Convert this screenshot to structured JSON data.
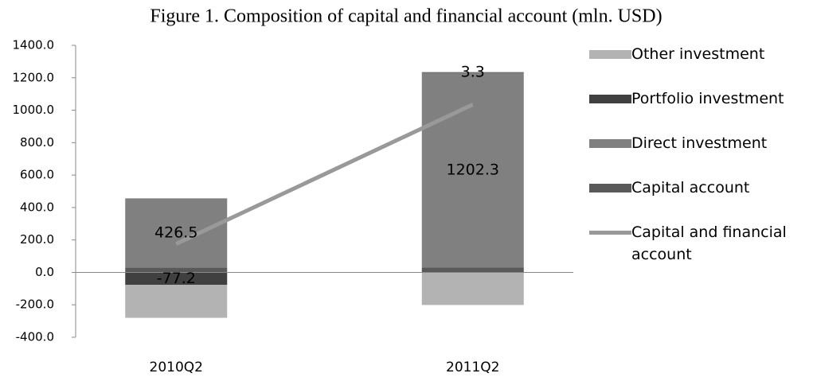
{
  "chart_data": {
    "type": "bar",
    "stacked": true,
    "title": "Figure 1. Composition of capital and financial account (mln. USD)",
    "categories": [
      "2010Q2",
      "2011Q2"
    ],
    "ylim": [
      -400,
      1400
    ],
    "yticks": [
      {
        "value": -400,
        "label": "-400.0"
      },
      {
        "value": -200,
        "label": "-200.0"
      },
      {
        "value": 0,
        "label": "0.0"
      },
      {
        "value": 200,
        "label": "200.0"
      },
      {
        "value": 400,
        "label": "400.0"
      },
      {
        "value": 600,
        "label": "600.0"
      },
      {
        "value": 800,
        "label": "800.0"
      },
      {
        "value": 1000,
        "label": "1000.0"
      },
      {
        "value": 1200,
        "label": "1200.0"
      },
      {
        "value": 1400,
        "label": "1400.0"
      }
    ],
    "series": [
      {
        "name": "Capital account",
        "color": "#595959",
        "values": [
          30,
          29
        ]
      },
      {
        "name": "Direct investment",
        "color": "#808080",
        "values": [
          426.5,
          1202.3
        ],
        "show_labels": true
      },
      {
        "name": "Portfolio investment",
        "color": "#404040",
        "values": [
          -77.2,
          3.3
        ],
        "show_labels": true
      },
      {
        "name": "Other investment",
        "color": "#b3b3b3",
        "values": [
          -203,
          -201
        ]
      },
      {
        "name": "Capital and financial account",
        "type": "line",
        "color": "#999999",
        "values": [
          176,
          1035
        ]
      }
    ]
  }
}
